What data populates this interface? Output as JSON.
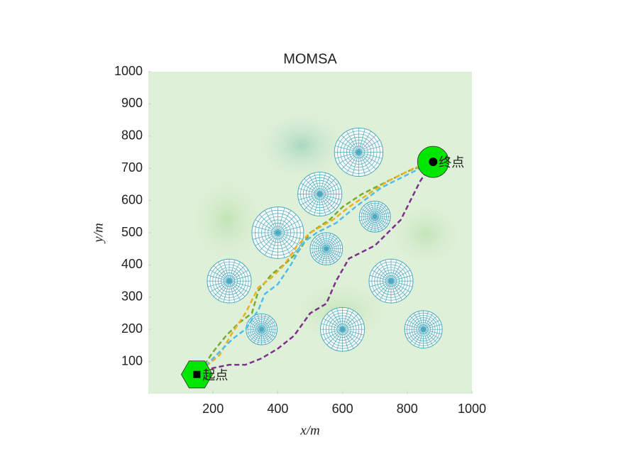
{
  "chart_data": {
    "type": "path-map",
    "title": "MOMSA",
    "x_label": "x/m",
    "y_label": "y/m",
    "xlim": [
      0,
      1000
    ],
    "ylim": [
      0,
      1000
    ],
    "xticks": [
      200,
      400,
      600,
      800,
      1000
    ],
    "yticks": [
      100,
      200,
      300,
      400,
      500,
      600,
      700,
      800,
      900,
      1000
    ],
    "obstacle_color": "#4aa8c0",
    "obstacles": [
      {
        "x": 650,
        "y": 750,
        "r": 75
      },
      {
        "x": 530,
        "y": 620,
        "r": 68
      },
      {
        "x": 700,
        "y": 550,
        "r": 48
      },
      {
        "x": 400,
        "y": 500,
        "r": 80
      },
      {
        "x": 550,
        "y": 450,
        "r": 50
      },
      {
        "x": 250,
        "y": 350,
        "r": 68
      },
      {
        "x": 750,
        "y": 350,
        "r": 68
      },
      {
        "x": 350,
        "y": 200,
        "r": 48
      },
      {
        "x": 600,
        "y": 200,
        "r": 68
      },
      {
        "x": 850,
        "y": 200,
        "r": 58
      }
    ],
    "start": {
      "x": 150,
      "y": 60,
      "label": "起点",
      "color": "#00e600"
    },
    "goal": {
      "x": 880,
      "y": 720,
      "label": "终点",
      "color": "#00e600"
    },
    "series": [
      {
        "color": "#7e2f8e",
        "x": [
          150,
          200,
          250,
          300,
          350,
          400,
          450,
          500,
          550,
          580,
          620,
          660,
          700,
          740,
          780,
          810,
          840,
          880
        ],
        "values": [
          60,
          80,
          90,
          90,
          110,
          140,
          180,
          250,
          280,
          350,
          420,
          440,
          460,
          500,
          540,
          600,
          660,
          720
        ]
      },
      {
        "color": "#77ac30",
        "x": [
          160,
          200,
          240,
          280,
          320,
          340,
          380,
          430,
          470,
          500,
          560,
          600,
          660,
          720,
          800,
          880
        ],
        "values": [
          70,
          130,
          180,
          220,
          250,
          320,
          370,
          410,
          450,
          500,
          540,
          580,
          620,
          650,
          690,
          720
        ]
      },
      {
        "color": "#edb120",
        "x": [
          160,
          220,
          260,
          300,
          340,
          380,
          420,
          460,
          500,
          570,
          620,
          680,
          740,
          820,
          880
        ],
        "values": [
          70,
          120,
          190,
          250,
          330,
          360,
          400,
          460,
          500,
          540,
          580,
          620,
          660,
          700,
          720
        ]
      },
      {
        "color": "#4dbeee",
        "x": [
          160,
          220,
          260,
          300,
          340,
          360,
          400,
          440,
          480,
          520,
          580,
          640,
          720,
          800,
          880
        ],
        "values": [
          70,
          130,
          170,
          200,
          260,
          310,
          340,
          400,
          470,
          500,
          530,
          580,
          640,
          680,
          720
        ]
      }
    ]
  }
}
